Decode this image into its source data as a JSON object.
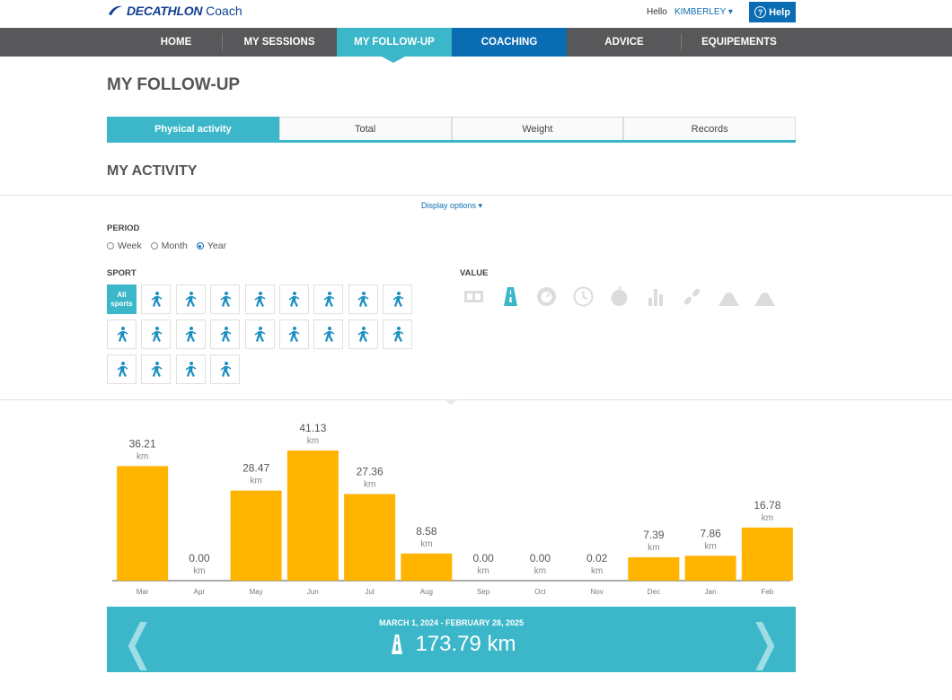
{
  "header": {
    "brand": "DECATHLON",
    "brand_suffix": "Coach",
    "hello": "Hello",
    "user": "KIMBERLEY ▾",
    "help": "Help"
  },
  "nav": {
    "items": [
      "HOME",
      "MY SESSIONS",
      "MY FOLLOW-UP",
      "COACHING",
      "ADVICE",
      "EQUIPEMENTS"
    ],
    "active": "MY FOLLOW-UP"
  },
  "page": {
    "title": "MY FOLLOW-UP",
    "tabs": [
      "Physical activity",
      "Total",
      "Weight",
      "Records"
    ],
    "section": "MY ACTIVITY",
    "display_options": "Display options ▾"
  },
  "period": {
    "label": "PERIOD",
    "options": [
      "Week",
      "Month",
      "Year"
    ],
    "selected": "Year"
  },
  "sport": {
    "label": "SPORT",
    "all_label_line1": "All",
    "all_label_line2": "sports",
    "icons": [
      "running-icon",
      "paragliding-icon",
      "volleyball-icon",
      "hiking-icon",
      "walking-icon",
      "weightlifting-icon",
      "gymnastics-icon",
      "wheelchair-icon",
      "walk-icon",
      "run-icon",
      "dance-icon",
      "climb-icon",
      "aerobics-icon",
      "skiing-icon",
      "handball-icon",
      "tennis-icon",
      "cycling-icon",
      "bike-icon",
      "treadmill-icon",
      "road-bike-icon",
      "nordic-walk-icon"
    ]
  },
  "value": {
    "label": "VALUE",
    "icons": [
      "on-icon",
      "distance-icon",
      "speed-icon",
      "clock-icon",
      "calories-icon",
      "chart-icon",
      "steps-icon",
      "elevation-up-icon",
      "elevation-down-icon"
    ],
    "selected": "distance-icon"
  },
  "chart_data": {
    "type": "bar",
    "categories": [
      "Mar",
      "Apr",
      "May",
      "Jun",
      "Jul",
      "Aug",
      "Sep",
      "Oct",
      "Nov",
      "Dec",
      "Jan",
      "Feb"
    ],
    "values": [
      36.21,
      0.0,
      28.47,
      41.13,
      27.36,
      8.58,
      0.0,
      0.0,
      0.02,
      7.39,
      7.86,
      16.78
    ],
    "value_labels": [
      "36.21",
      "0.00",
      "28.47",
      "41.13",
      "27.36",
      "8.58",
      "0.00",
      "0.00",
      "0.02",
      "7.39",
      "7.86",
      "16.78"
    ],
    "unit": "km",
    "bar_color": "#ffb400"
  },
  "summary": {
    "range": "MARCH 1, 2024 - FEBRUARY 28, 2025",
    "total": "173.79 km",
    "prev": "❬",
    "next": "❭"
  },
  "colors": {
    "accent": "#3bb7c9",
    "blue": "#0a6cb3",
    "nav_bg": "#58585a",
    "icon": "#1d8fc0"
  }
}
